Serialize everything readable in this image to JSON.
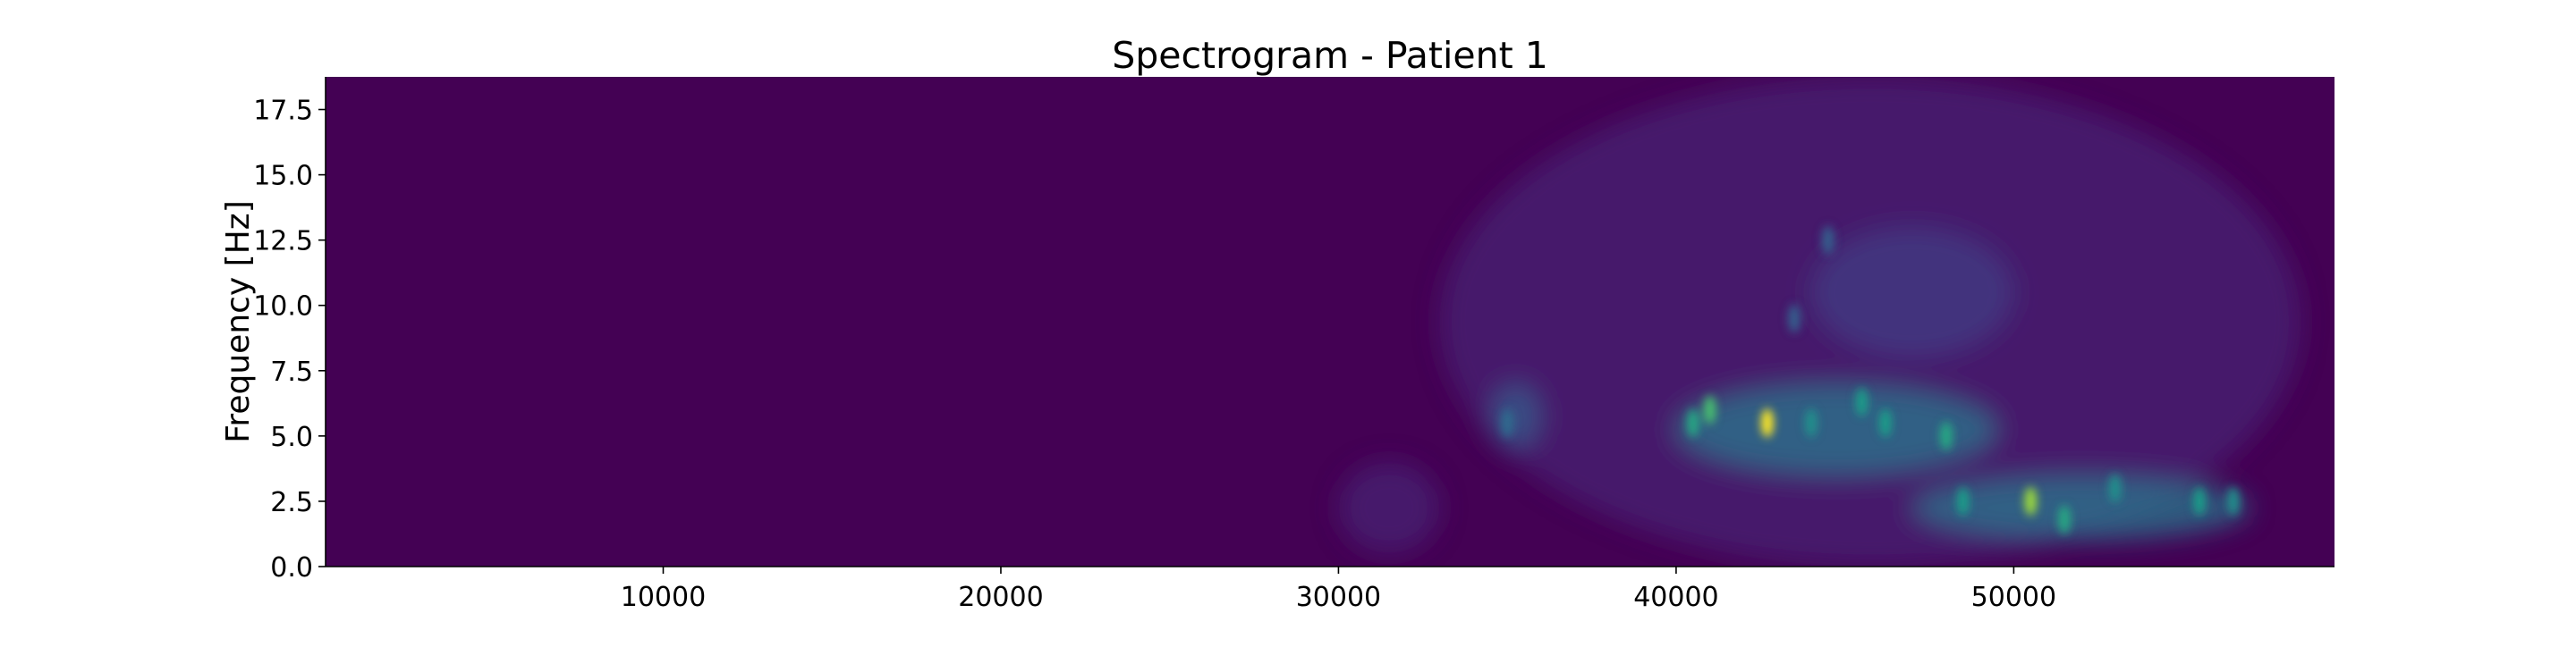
{
  "chart_data": {
    "type": "heatmap",
    "title": "Spectrogram - Patient 1",
    "xlabel": "",
    "ylabel": "Frequency [Hz]",
    "xlim": [
      0,
      59500
    ],
    "ylim": [
      0,
      18.75
    ],
    "x_ticks": [
      10000,
      20000,
      30000,
      40000,
      50000
    ],
    "x_tick_labels": [
      "10000",
      "20000",
      "30000",
      "40000",
      "50000"
    ],
    "y_ticks": [
      0.0,
      2.5,
      5.0,
      7.5,
      10.0,
      12.5,
      15.0,
      17.5
    ],
    "y_tick_labels": [
      "0.0",
      "2.5",
      "5.0",
      "7.5",
      "10.0",
      "12.5",
      "15.0",
      "17.5"
    ],
    "colormap": "viridis",
    "grid": false,
    "background_color": "#440154",
    "energy_regions": [
      {
        "x": [
          30000,
          33000
        ],
        "y": [
          0.5,
          4.0
        ],
        "intensity": 0.1
      },
      {
        "x": [
          33000,
          58500
        ],
        "y": [
          0,
          18.75
        ],
        "intensity": 0.1
      },
      {
        "x": [
          34500,
          36000
        ],
        "y": [
          4.5,
          7.0
        ],
        "intensity": 0.3
      },
      {
        "x": [
          40000,
          49500
        ],
        "y": [
          3.5,
          7.0
        ],
        "intensity": 0.4
      },
      {
        "x": [
          47000,
          57000
        ],
        "y": [
          1.0,
          3.5
        ],
        "intensity": 0.4
      },
      {
        "x": [
          44000,
          50000
        ],
        "y": [
          8.0,
          13.0
        ],
        "intensity": 0.18
      }
    ],
    "peaks": [
      {
        "x": 42700,
        "y": 5.5,
        "intensity": 1.0
      },
      {
        "x": 41000,
        "y": 6.0,
        "intensity": 0.7
      },
      {
        "x": 40500,
        "y": 5.5,
        "intensity": 0.6
      },
      {
        "x": 45500,
        "y": 6.3,
        "intensity": 0.55
      },
      {
        "x": 46200,
        "y": 5.5,
        "intensity": 0.55
      },
      {
        "x": 48000,
        "y": 5.0,
        "intensity": 0.6
      },
      {
        "x": 44000,
        "y": 5.5,
        "intensity": 0.5
      },
      {
        "x": 50500,
        "y": 2.5,
        "intensity": 0.85
      },
      {
        "x": 51500,
        "y": 1.8,
        "intensity": 0.6
      },
      {
        "x": 48500,
        "y": 2.5,
        "intensity": 0.55
      },
      {
        "x": 53000,
        "y": 3.0,
        "intensity": 0.5
      },
      {
        "x": 55500,
        "y": 2.5,
        "intensity": 0.55
      },
      {
        "x": 56500,
        "y": 2.5,
        "intensity": 0.5
      },
      {
        "x": 35000,
        "y": 5.5,
        "intensity": 0.35
      },
      {
        "x": 43500,
        "y": 9.5,
        "intensity": 0.3
      },
      {
        "x": 44500,
        "y": 12.5,
        "intensity": 0.3
      }
    ]
  }
}
